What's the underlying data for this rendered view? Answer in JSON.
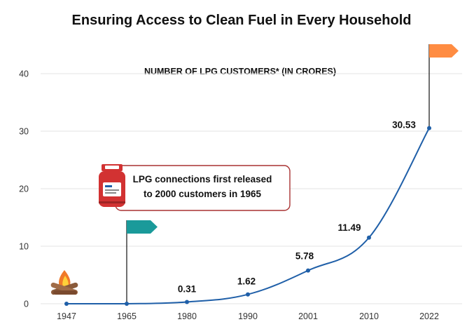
{
  "chart_data": {
    "type": "line",
    "title": "Ensuring Access to Clean Fuel in Every Household",
    "subtitle": "NUMBER OF LPG CUSTOMERS* (IN CRORES)",
    "categories": [
      "1947",
      "1965",
      "1980",
      "1990",
      "2001",
      "2010",
      "2022"
    ],
    "series": [
      {
        "values": [
          0,
          0.0002,
          0.31,
          1.62,
          5.78,
          11.49,
          30.53
        ]
      }
    ],
    "data_labels": [
      "",
      "",
      "0.31",
      "1.62",
      "5.78",
      "11.49",
      "30.53"
    ],
    "ylim": [
      0,
      40
    ],
    "yticks": [
      0,
      10,
      20,
      30,
      40
    ],
    "grid": true,
    "callout": {
      "line1": "LPG connections first released",
      "line2": "to 2000 customers in 1965"
    },
    "icons": {
      "start": "campfire-icon",
      "callout": "lpg-cylinder-icon",
      "flag_1965": "flag-icon",
      "flag_2022": "flag-icon"
    },
    "colors": {
      "line": "#1f5fa8",
      "grid": "#e3e3e3",
      "flag_1965": "#1a9a9a",
      "flag_2022": "#ff8c42",
      "callout_border": "#a93232",
      "cylinder": "#d23232"
    }
  }
}
